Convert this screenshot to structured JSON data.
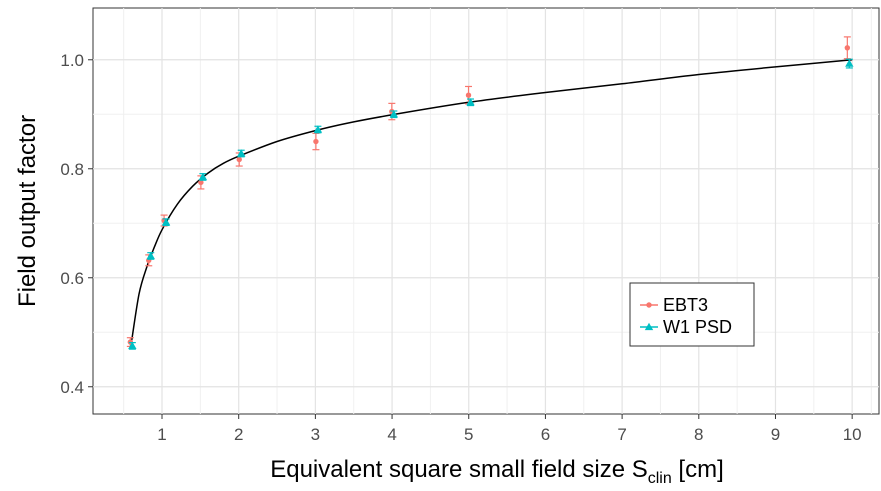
{
  "chart_data": {
    "type": "scatter",
    "title": "",
    "xlabel": "Equivalent square small field size S",
    "xlabel_sub": "clin",
    "xlabel_unit": " [cm]",
    "ylabel": "Field output factor",
    "xlim": [
      0.1,
      10.35
    ],
    "ylim": [
      0.35,
      1.095
    ],
    "x_ticks": [
      1,
      2,
      3,
      4,
      5,
      6,
      7,
      8,
      9,
      10
    ],
    "x_tick_labels": [
      "1",
      "2",
      "3",
      "4",
      "5",
      "6",
      "7",
      "8",
      "9",
      "10"
    ],
    "y_ticks": [
      0.4,
      0.6,
      0.8,
      1.0
    ],
    "y_tick_labels": [
      "0.4",
      "0.6",
      "0.8",
      "1.0"
    ],
    "grid": true,
    "legend_position": "bottom-right",
    "series": [
      {
        "name": "EBT3",
        "color": "#f8766d",
        "marker": "circle",
        "x": [
          0.6,
          0.84,
          1.04,
          1.52,
          2.02,
          3.02,
          4.01,
          5.01,
          9.95
        ],
        "y": [
          0.482,
          0.632,
          0.705,
          0.775,
          0.817,
          0.85,
          0.905,
          0.935,
          1.022
        ],
        "err": [
          0.008,
          0.01,
          0.01,
          0.012,
          0.012,
          0.015,
          0.015,
          0.016,
          0.02
        ]
      },
      {
        "name": "W1 PSD",
        "color": "#00bfc4",
        "marker": "triangle",
        "x": [
          0.6,
          0.84,
          1.04,
          1.52,
          2.02,
          3.02,
          4.01,
          5.01,
          9.95
        ],
        "y": [
          0.475,
          0.64,
          0.702,
          0.785,
          0.828,
          0.872,
          0.9,
          0.922,
          0.993
        ],
        "err": [
          0.006,
          0.006,
          0.006,
          0.006,
          0.006,
          0.006,
          0.006,
          0.006,
          0.008
        ]
      }
    ],
    "fit_curve": {
      "x": [
        0.6,
        0.7,
        0.8,
        0.9,
        1.0,
        1.2,
        1.4,
        1.6,
        1.8,
        2.0,
        2.5,
        3.0,
        3.5,
        4.0,
        5.0,
        6.0,
        7.0,
        8.0,
        9.0,
        10.0
      ],
      "y": [
        0.48,
        0.57,
        0.619,
        0.656,
        0.688,
        0.735,
        0.768,
        0.792,
        0.81,
        0.823,
        0.85,
        0.87,
        0.886,
        0.899,
        0.922,
        0.94,
        0.956,
        0.973,
        0.987,
        1.0
      ]
    }
  }
}
